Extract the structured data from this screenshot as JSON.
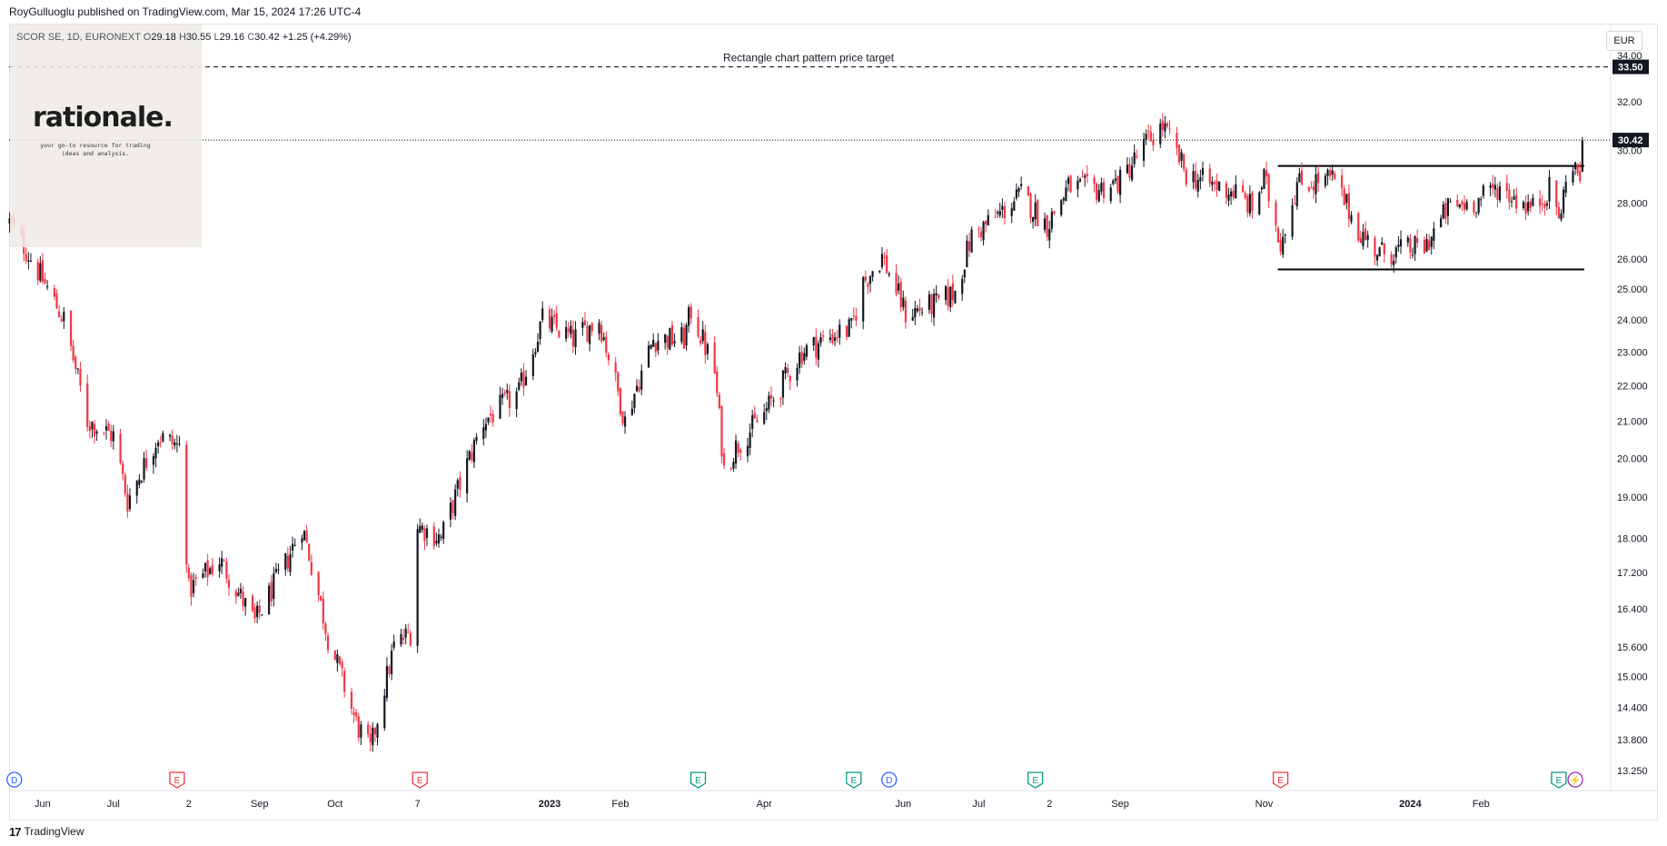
{
  "header": {
    "publisher_line": "RoyGulluoglu published on TradingView.com, Mar 15, 2024 17:26 UTC-4"
  },
  "symbol": {
    "name_line": "SCOR SE, 1D, EURONEXT",
    "open_label": "O",
    "open": "29.18",
    "high_label": "H",
    "high": "30.55",
    "low_label": "L",
    "low": "29.16",
    "close_label": "C",
    "close": "30.42",
    "change": "+1.25 (+4.29%)"
  },
  "logo": {
    "wordmark": "rationale.",
    "tagline_1": "your go-to resource for trading",
    "tagline_2": "ideas and analysis."
  },
  "currency": "EUR",
  "footer": {
    "brand": "TradingView",
    "mark": "17"
  },
  "colors": {
    "up": "#131722",
    "down": "#f23645",
    "dividend_event": "#2962ff",
    "earnings_red": "#f23645",
    "earnings_green": "#089981",
    "split_purple": "#9c27b0",
    "pattern_lines": "#000000"
  },
  "chart_data": {
    "type": "candlestick",
    "title": "",
    "ylabel": "EUR",
    "y_scale": "log",
    "ylim": [
      13.0,
      35.0
    ],
    "y_ticks": [
      "13.250",
      "13.800",
      "14.400",
      "15.000",
      "15.600",
      "16.400",
      "17.200",
      "18.000",
      "19.000",
      "20.000",
      "21.000",
      "22.000",
      "23.000",
      "24.000",
      "25.000",
      "26.000",
      "28.000",
      "30.00",
      "32.00",
      "34.00"
    ],
    "x_ticks": [
      {
        "label": "Jun",
        "date": "2022-06-01"
      },
      {
        "label": "Jul",
        "date": "2022-07-01"
      },
      {
        "label": "2",
        "date": "2022-08-02"
      },
      {
        "label": "Sep",
        "date": "2022-09-01"
      },
      {
        "label": "Oct",
        "date": "2022-10-03"
      },
      {
        "label": "7",
        "date": "2022-11-07"
      },
      {
        "label": "2023",
        "date": "2023-01-02"
      },
      {
        "label": "Feb",
        "date": "2023-02-01"
      },
      {
        "label": "Apr",
        "date": "2023-04-03"
      },
      {
        "label": "Jun",
        "date": "2023-06-01"
      },
      {
        "label": "Jul",
        "date": "2023-07-03"
      },
      {
        "label": "2",
        "date": "2023-08-02"
      },
      {
        "label": "Sep",
        "date": "2023-09-01"
      },
      {
        "label": "Nov",
        "date": "2023-11-01"
      },
      {
        "label": "2024",
        "date": "2024-01-02"
      },
      {
        "label": "Feb",
        "date": "2024-02-01"
      }
    ],
    "price_anchors": [
      {
        "date": "2022-05-18",
        "close": 27.3
      },
      {
        "date": "2022-05-23",
        "close": 26.6
      },
      {
        "date": "2022-06-10",
        "close": 24.0
      },
      {
        "date": "2022-06-20",
        "close": 21.0
      },
      {
        "date": "2022-07-01",
        "close": 20.6
      },
      {
        "date": "2022-07-07",
        "close": 18.9
      },
      {
        "date": "2022-07-20",
        "close": 20.6
      },
      {
        "date": "2022-07-29",
        "close": 20.3
      },
      {
        "date": "2022-08-02",
        "close": 16.8
      },
      {
        "date": "2022-08-15",
        "close": 17.5
      },
      {
        "date": "2022-08-30",
        "close": 16.1
      },
      {
        "date": "2022-09-12",
        "close": 17.4
      },
      {
        "date": "2022-09-19",
        "close": 18.3
      },
      {
        "date": "2022-09-30",
        "close": 15.8
      },
      {
        "date": "2022-10-12",
        "close": 14.1
      },
      {
        "date": "2022-10-18",
        "close": 13.6
      },
      {
        "date": "2022-10-28",
        "close": 15.6
      },
      {
        "date": "2022-11-04",
        "close": 15.9
      },
      {
        "date": "2022-11-07",
        "close": 18.3
      },
      {
        "date": "2022-11-17",
        "close": 18.0
      },
      {
        "date": "2022-12-05",
        "close": 21.0
      },
      {
        "date": "2022-12-20",
        "close": 21.8
      },
      {
        "date": "2022-12-30",
        "close": 24.0
      },
      {
        "date": "2023-01-12",
        "close": 23.4
      },
      {
        "date": "2023-01-23",
        "close": 24.0
      },
      {
        "date": "2023-02-03",
        "close": 21.0
      },
      {
        "date": "2023-02-15",
        "close": 23.4
      },
      {
        "date": "2023-02-28",
        "close": 23.4
      },
      {
        "date": "2023-03-03",
        "close": 24.3
      },
      {
        "date": "2023-03-13",
        "close": 22.4
      },
      {
        "date": "2023-03-17",
        "close": 19.7
      },
      {
        "date": "2023-03-22",
        "close": 20.3
      },
      {
        "date": "2023-04-03",
        "close": 21.2
      },
      {
        "date": "2023-04-19",
        "close": 23.0
      },
      {
        "date": "2023-05-04",
        "close": 23.6
      },
      {
        "date": "2023-05-10",
        "close": 23.7
      },
      {
        "date": "2023-05-15",
        "close": 25.2
      },
      {
        "date": "2023-05-23",
        "close": 26.1
      },
      {
        "date": "2023-06-02",
        "close": 24.2
      },
      {
        "date": "2023-06-15",
        "close": 24.5
      },
      {
        "date": "2023-06-23",
        "close": 24.9
      },
      {
        "date": "2023-06-30",
        "close": 26.8
      },
      {
        "date": "2023-07-12",
        "close": 27.6
      },
      {
        "date": "2023-07-21",
        "close": 28.3
      },
      {
        "date": "2023-08-01",
        "close": 27.2
      },
      {
        "date": "2023-08-10",
        "close": 28.6
      },
      {
        "date": "2023-08-22",
        "close": 28.5
      },
      {
        "date": "2023-09-01",
        "close": 28.8
      },
      {
        "date": "2023-09-12",
        "close": 30.3
      },
      {
        "date": "2023-09-19",
        "close": 31.0
      },
      {
        "date": "2023-09-29",
        "close": 29.1
      },
      {
        "date": "2023-10-09",
        "close": 28.7
      },
      {
        "date": "2023-10-20",
        "close": 28.4
      },
      {
        "date": "2023-10-27",
        "close": 27.8
      },
      {
        "date": "2023-11-01",
        "close": 28.9
      },
      {
        "date": "2023-11-08",
        "close": 26.6
      },
      {
        "date": "2023-11-15",
        "close": 28.7
      },
      {
        "date": "2023-11-30",
        "close": 28.9
      },
      {
        "date": "2023-12-12",
        "close": 26.9
      },
      {
        "date": "2023-12-20",
        "close": 26.2
      },
      {
        "date": "2024-01-08",
        "close": 26.4
      },
      {
        "date": "2024-01-18",
        "close": 27.8
      },
      {
        "date": "2024-01-31",
        "close": 28.1
      },
      {
        "date": "2024-02-08",
        "close": 28.6
      },
      {
        "date": "2024-02-23",
        "close": 27.8
      },
      {
        "date": "2024-03-01",
        "close": 28.5
      },
      {
        "date": "2024-03-06",
        "close": 27.4
      },
      {
        "date": "2024-03-08",
        "close": 29.2
      },
      {
        "date": "2024-03-14",
        "close": 29.18
      },
      {
        "date": "2024-03-15",
        "close": 30.42
      }
    ],
    "last_candle": {
      "date": "2024-03-15",
      "open": 29.18,
      "high": 30.55,
      "low": 29.16,
      "close": 30.42
    },
    "horizontal_lines": [
      {
        "name": "price-target-line",
        "value": 33.5,
        "style": "dashed",
        "label": "Rectangle chart pattern price target"
      },
      {
        "name": "last-price-line",
        "value": 30.42,
        "style": "dotted"
      }
    ],
    "rectangle_pattern": {
      "top": 29.4,
      "bottom": 25.65,
      "start": "2023-11-08",
      "end": "2024-03-15"
    },
    "price_tags": [
      {
        "value": "33.50",
        "price": 33.5
      },
      {
        "value": "30.42",
        "price": 30.42
      }
    ],
    "events": [
      {
        "type": "D",
        "date": "2022-05-20",
        "kind": "dividend"
      },
      {
        "type": "E",
        "date": "2022-07-28",
        "kind": "earnings-red"
      },
      {
        "type": "E",
        "date": "2022-11-08",
        "kind": "earnings-red"
      },
      {
        "type": "E",
        "date": "2023-03-06",
        "kind": "earnings-green"
      },
      {
        "type": "E",
        "date": "2023-05-11",
        "kind": "earnings-green"
      },
      {
        "type": "D",
        "date": "2023-05-26",
        "kind": "dividend"
      },
      {
        "type": "E",
        "date": "2023-07-27",
        "kind": "earnings-green"
      },
      {
        "type": "E",
        "date": "2023-11-08",
        "kind": "earnings-red"
      },
      {
        "type": "E",
        "date": "2024-03-05",
        "kind": "earnings-green"
      },
      {
        "type": "⚡",
        "date": "2024-03-12",
        "kind": "split"
      }
    ]
  }
}
